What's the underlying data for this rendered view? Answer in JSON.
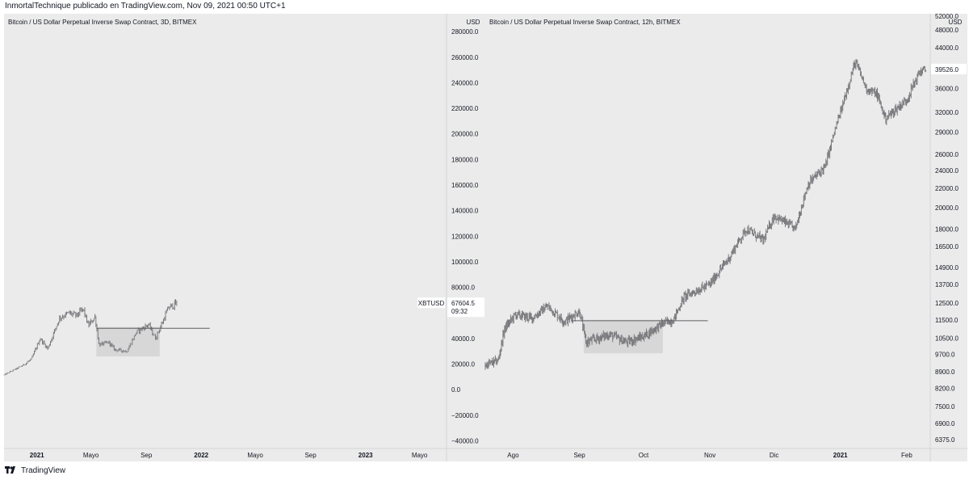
{
  "header": {
    "text": "InmortalTechnique publicado en TradingView.com, Nov 09, 2021 00:50 UTC+1"
  },
  "footer": {
    "brand": "TradingView"
  },
  "colors": {
    "pane_bg": "#ebebeb",
    "candles": "#7a7a7e",
    "zone": "#d7d7d7",
    "line": "#5f5f63",
    "axis_text": "#131722"
  },
  "chart_data": [
    {
      "type": "candlestick",
      "title": "Bitcoin / US Dollar Perpetual Inverse Swap Contract, 3D, BITMEX",
      "currency": "USD",
      "symbol": "XBTUSD",
      "last_price": "67604.5",
      "countdown": "09:32",
      "y_scale": "linear",
      "ylim": [
        -46000,
        294000
      ],
      "y_ticks": [
        "280000.0",
        "260000.0",
        "240000.0",
        "220000.0",
        "200000.0",
        "180000.0",
        "160000.0",
        "140000.0",
        "120000.0",
        "100000.0",
        "80000.0",
        "60000.0",
        "40000.0",
        "20000.0",
        "0.0",
        "−20000.0",
        "−40000.0"
      ],
      "y_tick_values": [
        280000,
        260000,
        240000,
        220000,
        200000,
        180000,
        160000,
        140000,
        120000,
        100000,
        80000,
        60000,
        40000,
        20000,
        0,
        -20000,
        -40000
      ],
      "x_range": [
        "2020-10-20",
        "2023-06-30"
      ],
      "x_ticks": [
        {
          "label": "2021",
          "date": "2021-01-01"
        },
        {
          "label": "Mayo",
          "date": "2021-05-01"
        },
        {
          "label": "Sep",
          "date": "2021-09-01"
        },
        {
          "label": "2022",
          "date": "2022-01-01"
        },
        {
          "label": "Mayo",
          "date": "2022-05-01"
        },
        {
          "label": "Sep",
          "date": "2022-09-01"
        },
        {
          "label": "2023",
          "date": "2023-01-01"
        },
        {
          "label": "Mayo",
          "date": "2023-05-01"
        }
      ],
      "bold_ticks": [
        "2021",
        "2022",
        "2023"
      ],
      "price_path": [
        [
          "2020-10-20",
          11500
        ],
        [
          "2020-11-10",
          15300
        ],
        [
          "2020-12-01",
          19000
        ],
        [
          "2020-12-20",
          24000
        ],
        [
          "2021-01-08",
          40000
        ],
        [
          "2021-01-25",
          32000
        ],
        [
          "2021-02-20",
          56000
        ],
        [
          "2021-03-13",
          60000
        ],
        [
          "2021-03-30",
          58000
        ],
        [
          "2021-04-14",
          63000
        ],
        [
          "2021-04-25",
          50000
        ],
        [
          "2021-05-10",
          57000
        ],
        [
          "2021-05-19",
          35000
        ],
        [
          "2021-06-10",
          37000
        ],
        [
          "2021-06-22",
          31500
        ],
        [
          "2021-07-20",
          30000
        ],
        [
          "2021-08-10",
          45000
        ],
        [
          "2021-09-06",
          51000
        ],
        [
          "2021-09-21",
          40000
        ],
        [
          "2021-10-05",
          51000
        ],
        [
          "2021-10-20",
          64000
        ],
        [
          "2021-11-09",
          67604.5
        ]
      ],
      "zone": {
        "x_start": "2021-05-13",
        "x_end": "2021-10-01",
        "y_low": 26000,
        "y_high": 49000
      },
      "horizontal_line": {
        "y": 48000,
        "x_start": "2021-05-13",
        "x_end": "2022-01-20"
      }
    },
    {
      "type": "candlestick",
      "title": "Bitcoin / US Dollar Perpetual Inverse Swap Contract, 12h, BITMEX",
      "currency": "USD",
      "last_price": "39526.0",
      "y_scale": "log",
      "ylim": [
        6100,
        52000
      ],
      "y_ticks": [
        "48000.0",
        "44000.0",
        "40000.0",
        "36000.0",
        "32000.0",
        "29000.0",
        "26000.0",
        "24000.0",
        "22000.0",
        "20000.0",
        "18000.0",
        "16500.0",
        "14900.0",
        "13700.0",
        "12500.0",
        "11500.0",
        "10500.0",
        "9700.0",
        "8900.0",
        "8200.0",
        "7500.0",
        "6900.0",
        "6375.0"
      ],
      "y_tick_values": [
        48000,
        44000,
        40000,
        36000,
        32000,
        29000,
        26000,
        24000,
        22000,
        20000,
        18000,
        16500,
        14900,
        13700,
        12500,
        11500,
        10500,
        9700,
        8900,
        8200,
        7500,
        6900,
        6375
      ],
      "top_partial_tick": "52000.0",
      "x_range": [
        "2020-07-19",
        "2021-02-12"
      ],
      "x_ticks": [
        {
          "label": "Ago",
          "date": "2020-08-01"
        },
        {
          "label": "Sep",
          "date": "2020-09-01"
        },
        {
          "label": "Oct",
          "date": "2020-10-01"
        },
        {
          "label": "Nov",
          "date": "2020-11-01"
        },
        {
          "label": "Dic",
          "date": "2020-12-01"
        },
        {
          "label": "2021",
          "date": "2021-01-01"
        },
        {
          "label": "Feb",
          "date": "2021-02-01"
        }
      ],
      "bold_ticks": [
        "2021"
      ],
      "price_path": [
        [
          "2020-07-19",
          9200
        ],
        [
          "2020-07-25",
          9400
        ],
        [
          "2020-07-28",
          11000
        ],
        [
          "2020-08-02",
          11800
        ],
        [
          "2020-08-10",
          11600
        ],
        [
          "2020-08-17",
          12300
        ],
        [
          "2020-08-25",
          11400
        ],
        [
          "2020-09-01",
          12000
        ],
        [
          "2020-09-04",
          10300
        ],
        [
          "2020-09-15",
          10700
        ],
        [
          "2020-09-23",
          10300
        ],
        [
          "2020-10-01",
          10600
        ],
        [
          "2020-10-10",
          11300
        ],
        [
          "2020-10-15",
          11500
        ],
        [
          "2020-10-20",
          12900
        ],
        [
          "2020-11-01",
          13700
        ],
        [
          "2020-11-10",
          15600
        ],
        [
          "2020-11-18",
          18000
        ],
        [
          "2020-11-26",
          17000
        ],
        [
          "2020-12-01",
          19200
        ],
        [
          "2020-12-11",
          18000
        ],
        [
          "2020-12-17",
          22500
        ],
        [
          "2020-12-25",
          24500
        ],
        [
          "2021-01-02",
          33000
        ],
        [
          "2021-01-08",
          41000
        ],
        [
          "2021-01-13",
          36000
        ],
        [
          "2021-01-18",
          35000
        ],
        [
          "2021-01-22",
          31000
        ],
        [
          "2021-02-01",
          34000
        ],
        [
          "2021-02-07",
          39000
        ],
        [
          "2021-02-10",
          39526
        ]
      ],
      "zone": {
        "x_start": "2020-09-03",
        "x_end": "2020-10-10",
        "y_low": 9750,
        "y_high": 11500
      },
      "horizontal_line": {
        "y": 11450,
        "x_start": "2020-08-28",
        "x_end": "2020-10-31"
      }
    }
  ]
}
